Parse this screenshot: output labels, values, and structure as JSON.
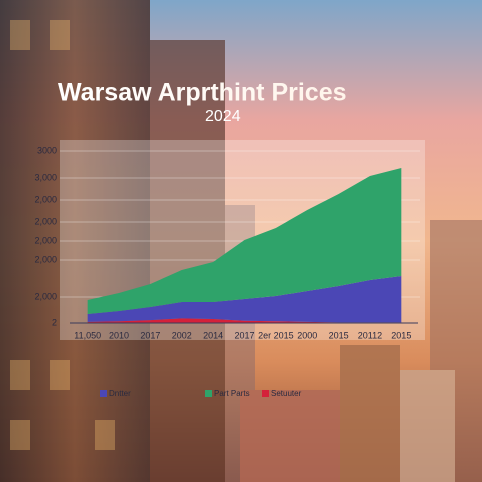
{
  "chart_data": {
    "type": "area",
    "stacked": true,
    "title": "Warsaw Arprthint Prices",
    "subtitle": "2024",
    "categories": [
      "11,050",
      "2010",
      "2017",
      "2002",
      "2014",
      "2017",
      "2er 2015",
      "2000",
      "2015",
      "20112",
      "2015"
    ],
    "y_axis_labels": [
      "3000",
      "3,000",
      "2,000",
      "2,000",
      "2,000",
      "2,000",
      "2,000",
      "2"
    ],
    "ylim": [
      0,
      3000
    ],
    "series": [
      {
        "name": "Setuuter",
        "color": "#d4213a",
        "values": [
          20,
          30,
          50,
          80,
          70,
          40,
          30,
          20,
          10,
          10,
          10
        ]
      },
      {
        "name": "Dntter",
        "color": "#4b47b5",
        "values": [
          137,
          179,
          229,
          286,
          296,
          379,
          441,
          538,
          635,
          740,
          810
        ]
      },
      {
        "name": "Part Parts",
        "color": "#2fa36a",
        "values": [
          244,
          314,
          401,
          558,
          698,
          1028,
          1186,
          1413,
          1605,
          1814,
          1883
        ]
      }
    ]
  }
}
